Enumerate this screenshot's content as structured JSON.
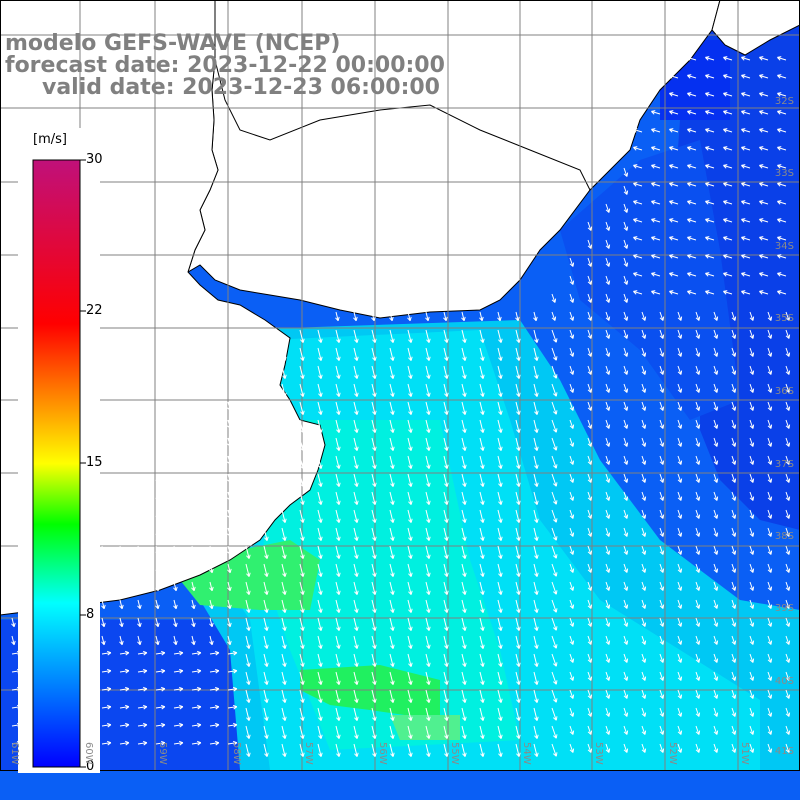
{
  "title": {
    "line1": "modelo GEFS-WAVE (NCEP)",
    "line2": "forecast date: 2023-12-22 00:00:00",
    "line3": "valid date: 2023-12-23 06:00:00"
  },
  "colorbar": {
    "unit": "[m/s]",
    "min": 0,
    "max": 30,
    "ticks": [
      "30",
      "22",
      "15",
      "8",
      "0"
    ],
    "tick_values": [
      30,
      22,
      15,
      8,
      0
    ],
    "colors": [
      "#0000ff",
      "#00ffff",
      "#00ff00",
      "#ffff00",
      "#ff0000",
      "#c0107a"
    ]
  },
  "axes": {
    "lat_labels": [
      "32S",
      "33S",
      "34S",
      "35S",
      "36S",
      "37S",
      "38S",
      "39S",
      "40S",
      "41S"
    ],
    "lon_labels": [
      "61W",
      "60W",
      "59W",
      "58W",
      "57W",
      "56W",
      "55W",
      "54W",
      "53W",
      "52W",
      "51W"
    ]
  },
  "colors": {
    "land": "#ffffff",
    "coast": "#000000",
    "grid": "#808080",
    "arrow": "#ffffff"
  }
}
